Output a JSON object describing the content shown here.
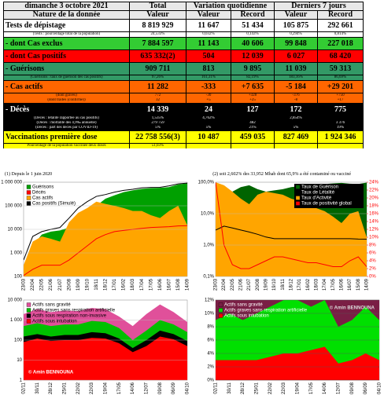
{
  "table": {
    "header": [
      "dimanche 3 octobre 2021",
      "Total",
      "Variation quotidienne",
      "Derniers 7 jours"
    ],
    "subheader": [
      "Nature de la donnée",
      "Valeur",
      "Valeur",
      "Record",
      "Valeur",
      "Record"
    ],
    "rows": [
      {
        "label": "Tests de dépistage",
        "cells": [
          "8 819 929",
          "11 647",
          "51 434",
          "105 875",
          "292 661"
        ],
        "color": "#ffffff",
        "text_color": "#000000",
        "notes": [
          {
            "label": "(Tests : pourcentage total de la population)",
            "cells": [
              "24,533%",
              "0,032%",
              "0,143%",
              "0,294%",
              "0,814%"
            ]
          }
        ]
      },
      {
        "label": "- dont Cas exclus",
        "cells": [
          "7 884 597",
          "11 143",
          "40 606",
          "99 848",
          "227 018"
        ],
        "color": "#33cc33",
        "text_color": "#000000",
        "notes": []
      },
      {
        "label": "- dont Cas positifs",
        "cells": [
          "635 332(2)",
          "504",
          "12 039",
          "6 027",
          "68 420"
        ],
        "color": "#ff0000",
        "text_color": "#000000",
        "notes": []
      },
      {
        "label": "- Guérisons",
        "cells": [
          "909 711",
          "813",
          "9 895",
          "11 039",
          "59 313"
        ],
        "color": "#339966",
        "text_color": "#000000",
        "notes": [
          {
            "label": "(Guérisons : taux de guérison des cas positifs)",
            "cells": [
              "97,26%",
              "161,31%",
              "82,19%",
              "183,16%",
              "86,69%"
            ]
          }
        ]
      },
      {
        "label": "- Cas actifs",
        "cells": [
          "11 282",
          "-333",
          "+7 635",
          "-5 184",
          "+29 201"
        ],
        "color": "#ff6600",
        "text_color": "#000000",
        "notes": [
          {
            "label": "(dont graves)",
            "cells": [
              "772",
              "-30",
              "+328",
              "-376",
              "+750"
            ]
          },
          {
            "label": "(dont traités (confirmé))",
            "cells": [
              "32",
              "+5",
              "+25",
              "-8",
              "+17"
            ]
          }
        ]
      },
      {
        "label": "- Décès",
        "cells": [
          "14 339",
          "24",
          "127",
          "172",
          "775"
        ],
        "color": "#000000",
        "text_color": "#ffffff",
        "notes": [
          {
            "label": "(Décès : létalité rapportée au cas positifs)",
            "cells": [
              "1,535%",
              "4,762%",
              null,
              "2,854%",
              null
            ]
          },
          {
            "label": "(Décès : mortalité des 4,9‰ annuelle)",
            "cells": [
              "279 759",
              null,
              "482",
              null,
              "3 376"
            ]
          },
          {
            "label": "(Décès : part des décès par COVID-19)",
            "cells": [
              "5%",
              "5%",
              "21%",
              "5%",
              "19%"
            ]
          }
        ]
      },
      {
        "label": "Vaccinations première dose",
        "cells": [
          "22 758 556(3)",
          "10 487",
          "459 035",
          "827 469",
          "1 924 346"
        ],
        "color": "#ffff00",
        "text_color": "#000000",
        "notes": [
          {
            "label": "Pourcentage de la population vaccinée deux doses",
            "cells": [
              "51,03%",
              null,
              null,
              null,
              null
            ]
          }
        ]
      }
    ],
    "footnotes": [
      "(1) Depuis le 1 juin 2020",
      "(2) soit 2,602% des 33,952 Mhab dont 65,9% a été contaminé ou vacciné"
    ]
  },
  "chart_data": [
    {
      "type": "area",
      "log": true,
      "grid": true,
      "legend": "upper left",
      "background": "#ffffff",
      "categories": [
        "23/03",
        "22/04",
        "22/05",
        "21/06",
        "21/07",
        "20/08",
        "19/09",
        "19/10",
        "18/11",
        "18/12",
        "17/01",
        "16/02",
        "18/03",
        "17/04",
        "17/05",
        "16/06",
        "16/07",
        "15/08",
        "14/09"
      ],
      "ylim": [
        100,
        1000000
      ],
      "yticks": [
        100,
        {
          "value": 1000,
          "label": "1 000"
        },
        {
          "value": 10000,
          "label": "10 000"
        },
        {
          "value": 100000,
          "label": "100 000"
        },
        {
          "value": 1000000,
          "label": "1 000 000"
        }
      ],
      "series": [
        {
          "name": "Guérisons",
          "color": "#00a000",
          "kind": "area",
          "values": [
            100,
            2000,
            6000,
            8000,
            9000,
            12000,
            30000,
            60000,
            100000,
            200000,
            280000,
            380000,
            450000,
            520000,
            560000,
            580000,
            620000,
            800000,
            900000
          ]
        },
        {
          "name": "Décès",
          "color": "#ff0000",
          "kind": "line",
          "values": [
            110,
            200,
            300,
            300,
            300,
            500,
            1000,
            2000,
            4000,
            6000,
            8000,
            9000,
            10000,
            11000,
            12000,
            12500,
            13000,
            14000,
            14300
          ]
        },
        {
          "name": "Cas actifs",
          "color": "#ffa500",
          "kind": "area",
          "values": [
            300,
            3000,
            5000,
            4000,
            3000,
            20000,
            50000,
            80000,
            150000,
            120000,
            100000,
            80000,
            60000,
            60000,
            40000,
            30000,
            60000,
            100000,
            15000
          ]
        },
        {
          "name": "Cas positifs (Simulé)",
          "color": "#000000",
          "kind": "line",
          "values": [
            500,
            5000,
            8000,
            10000,
            12000,
            30000,
            80000,
            150000,
            250000,
            300000,
            380000,
            450000,
            500000,
            580000,
            600000,
            610000,
            700000,
            850000,
            920000
          ]
        }
      ]
    },
    {
      "type": "area",
      "log": true,
      "grid": true,
      "legend": "upper right",
      "background": "#ffffff",
      "categories": [
        "23/03",
        "22/04",
        "22/05",
        "21/06",
        "21/07",
        "20/08",
        "19/09",
        "19/10",
        "18/11",
        "18/12",
        "17/01",
        "16/02",
        "18/03",
        "17/04",
        "17/05",
        "16/06",
        "16/07",
        "15/08",
        "14/09"
      ],
      "ylim": [
        0.1,
        100
      ],
      "yticks": [
        {
          "value": 0.1,
          "label": "0,1%"
        },
        {
          "value": 1,
          "label": "1,0%"
        },
        {
          "value": 10,
          "label": "10,0%"
        },
        {
          "value": 100,
          "label": "100,0%"
        }
      ],
      "y2lim": [
        0,
        24
      ],
      "y2ticks": [
        {
          "value": 0,
          "label": "0%"
        },
        {
          "value": 2,
          "label": "2%"
        },
        {
          "value": 4,
          "label": "4%"
        },
        {
          "value": 6,
          "label": "6%"
        },
        {
          "value": 8,
          "label": "8%"
        },
        {
          "value": 10,
          "label": "10%"
        },
        {
          "value": 12,
          "label": "12%"
        },
        {
          "value": 14,
          "label": "14%"
        },
        {
          "value": 16,
          "label": "16%"
        },
        {
          "value": 18,
          "label": "18%"
        },
        {
          "value": 20,
          "label": "20%"
        },
        {
          "value": 22,
          "label": "22%"
        },
        {
          "value": 24,
          "label": "24%"
        }
      ],
      "series": [
        {
          "name": "Taux de Guérison",
          "color": "#006400",
          "kind": "area",
          "values": [
            1,
            20,
            50,
            70,
            80,
            60,
            50,
            55,
            60,
            70,
            75,
            80,
            85,
            88,
            92,
            95,
            90,
            88,
            97.26
          ]
        },
        {
          "name": "Taux de Létalité",
          "color": "#000000",
          "kind": "line",
          "values": [
            3,
            4,
            3.5,
            3,
            2.6,
            2.2,
            1.8,
            1.6,
            1.6,
            1.6,
            1.6,
            1.6,
            1.6,
            1.6,
            1.6,
            1.6,
            1.6,
            1.55,
            1.535
          ]
        },
        {
          "name": "Taux d'Activité",
          "color": "#ffa500",
          "kind": "area",
          "values": [
            99,
            80,
            50,
            30,
            20,
            40,
            50,
            45,
            40,
            30,
            25,
            20,
            15,
            12,
            8,
            5,
            10,
            12,
            1.77
          ]
        },
        {
          "name": "Taux de positivité global",
          "color": "#ff0000",
          "kind": "line",
          "axis": "y2",
          "values": [
            24,
            8,
            3,
            2,
            2,
            3,
            4,
            5,
            5,
            4.5,
            4,
            3.5,
            3.5,
            3,
            2.5,
            2.5,
            4,
            5,
            2.5
          ]
        }
      ]
    },
    {
      "type": "area",
      "log": true,
      "grid": true,
      "legend": "upper left",
      "background": "#ffffff",
      "watermark": {
        "text": "© Amin BENNOUNA",
        "corner": "lower left"
      },
      "categories": [
        "02/11",
        "30/11",
        "28/12",
        "25/01",
        "22/02",
        "22/03",
        "19/04",
        "17/05",
        "14/06",
        "12/07",
        "09/08",
        "06/09",
        "04/10"
      ],
      "ylim": [
        1,
        10000
      ],
      "yticks": [
        1,
        10,
        100,
        {
          "value": 1000,
          "label": "1 000"
        },
        {
          "value": 10000,
          "label": "10 000"
        }
      ],
      "series": [
        {
          "name": "Actifs sans gravité",
          "color": "#e0509a",
          "kind": "area",
          "values": [
            2000,
            3500,
            2500,
            3000,
            2800,
            4000,
            3500,
            1500,
            500,
            2000,
            6000,
            2500,
            800
          ]
        },
        {
          "name": "Actifs graves sans respiration artificielle",
          "color": "#00c000",
          "kind": "area",
          "values": [
            500,
            700,
            500,
            600,
            600,
            900,
            800,
            400,
            100,
            300,
            1000,
            600,
            250
          ]
        },
        {
          "name": "Actifs sous respiration non-invasive",
          "color": "#000000",
          "kind": "area",
          "values": [
            150,
            200,
            150,
            180,
            180,
            250,
            220,
            120,
            40,
            100,
            300,
            200,
            90
          ]
        },
        {
          "name": "Actifs sous intubation",
          "color": "#ff0000",
          "kind": "area",
          "values": [
            80,
            120,
            90,
            100,
            100,
            130,
            120,
            70,
            25,
            50,
            150,
            110,
            50
          ]
        }
      ]
    },
    {
      "type": "area",
      "log": false,
      "grid": true,
      "legend": "upper left",
      "background": "#000000",
      "watermark": {
        "text": "© Amin BENNOUNA",
        "corner": "upper right"
      },
      "categories": [
        "02/11",
        "30/11",
        "28/12",
        "25/01",
        "22/02",
        "22/03",
        "19/04",
        "17/05",
        "14/06",
        "12/07",
        "09/08",
        "06/09",
        "04/10"
      ],
      "ylim": [
        0,
        12
      ],
      "yticks": [
        {
          "value": 0,
          "label": "0%"
        },
        {
          "value": 2,
          "label": "2%"
        },
        {
          "value": 4,
          "label": "4%"
        },
        {
          "value": 6,
          "label": "6%"
        },
        {
          "value": 8,
          "label": "8%"
        },
        {
          "value": 10,
          "label": "10%"
        },
        {
          "value": 12,
          "label": "12%"
        }
      ],
      "series": [
        {
          "name": "Actifs sans gravité",
          "color": "#7a1f45",
          "kind": "area",
          "values": [
            85,
            84,
            86,
            85,
            84,
            82,
            83,
            80,
            78,
            86,
            84,
            82,
            85
          ]
        },
        {
          "name": "Actifs graves sans respiration artificielle",
          "color": "#00e000",
          "kind": "area",
          "values": [
            9,
            10,
            9,
            10,
            11,
            12,
            12,
            11,
            12,
            8,
            9,
            11,
            9
          ]
        },
        {
          "name": "Actifs sous intubation",
          "color": "#ff0000",
          "kind": "area",
          "values": [
            3,
            3,
            3,
            3,
            3.5,
            4,
            4,
            4.5,
            5,
            2.5,
            3,
            4,
            3
          ]
        }
      ]
    }
  ]
}
